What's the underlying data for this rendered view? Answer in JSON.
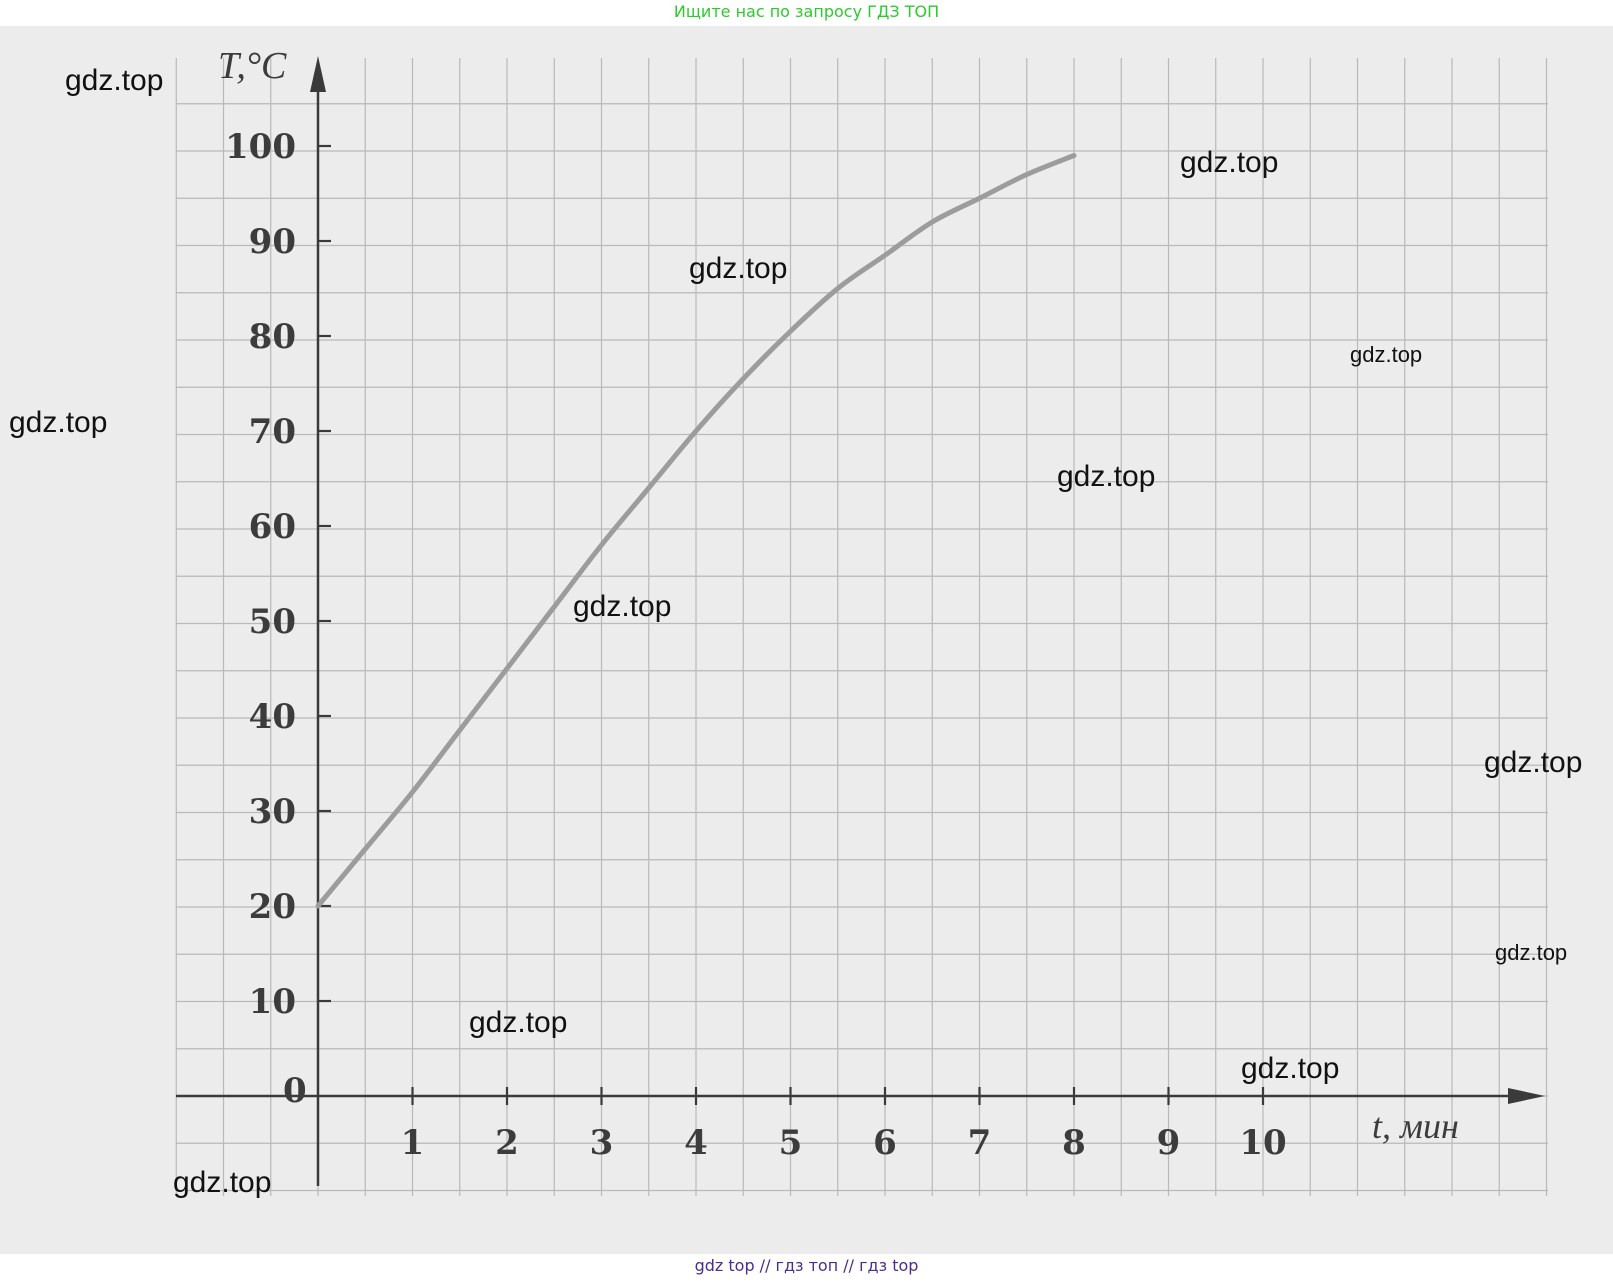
{
  "top_banner": "Ищите нас по запросу ГДЗ ТОП",
  "bottom_banner": "gdz top  //  гдз топ  //  гдз top",
  "watermark": "gdz.top",
  "colors": {
    "paper": "#ececec",
    "grid": "#b9b9b9",
    "axis": "#3a3a3a",
    "curve": "#9c9c9c",
    "text": "#3c3c3c",
    "banner_top": "#2ec92e",
    "banner_bottom": "#4b2c8f"
  },
  "chart_data": {
    "type": "line",
    "xlabel": "t, мин",
    "ylabel": "T,°C",
    "origin_label": "0",
    "xlim": [
      0,
      10
    ],
    "ylim": [
      0,
      100
    ],
    "xticks": [
      1,
      2,
      3,
      4,
      5,
      6,
      7,
      8,
      9,
      10
    ],
    "yticks": [
      10,
      20,
      30,
      40,
      50,
      60,
      70,
      80,
      90,
      100
    ],
    "grid": true,
    "series": [
      {
        "x": [
          0,
          0.5,
          1,
          1.5,
          2,
          2.5,
          3,
          3.5,
          4,
          4.5,
          5,
          5.5,
          6,
          6.5,
          7,
          7.5,
          8
        ],
        "y": [
          20,
          26,
          32,
          38.5,
          45,
          51.5,
          58,
          64,
          70,
          75.5,
          80.5,
          85,
          88.5,
          92,
          94.5,
          97,
          99
        ]
      }
    ]
  }
}
